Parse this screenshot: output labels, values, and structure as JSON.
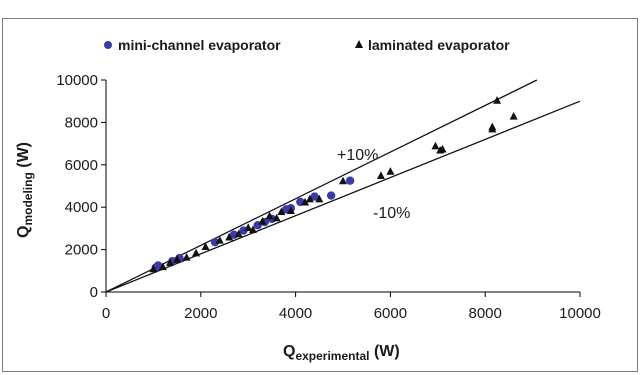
{
  "chart_data": {
    "type": "scatter",
    "title": "",
    "xlabel": "Q",
    "xlabel_sub": "experimental",
    "xlabel_unit": " (W)",
    "ylabel": "Q",
    "ylabel_sub": "modeling",
    "ylabel_unit": " (W)",
    "xlim": [
      0,
      10000
    ],
    "ylim": [
      0,
      10000
    ],
    "xticks": [
      0,
      2000,
      4000,
      6000,
      8000,
      10000
    ],
    "yticks": [
      0,
      2000,
      4000,
      6000,
      8000,
      10000
    ],
    "grid": false,
    "legend_position": "top",
    "series": [
      {
        "name": "mini-channel evaporator",
        "marker": "circle",
        "color": "#3a3aa8",
        "points": [
          [
            1050,
            1150
          ],
          [
            1100,
            1250
          ],
          [
            1400,
            1450
          ],
          [
            1550,
            1600
          ],
          [
            2300,
            2350
          ],
          [
            2700,
            2700
          ],
          [
            2900,
            2900
          ],
          [
            3200,
            3150
          ],
          [
            3350,
            3300
          ],
          [
            3500,
            3450
          ],
          [
            3800,
            3900
          ],
          [
            3900,
            3950
          ],
          [
            4100,
            4250
          ],
          [
            4400,
            4500
          ],
          [
            4750,
            4550
          ],
          [
            5150,
            5250
          ]
        ]
      },
      {
        "name": "laminated evaporator",
        "marker": "triangle",
        "color": "#111111",
        "points": [
          [
            1000,
            1100
          ],
          [
            1200,
            1200
          ],
          [
            1350,
            1400
          ],
          [
            1500,
            1550
          ],
          [
            1700,
            1650
          ],
          [
            1900,
            1850
          ],
          [
            2100,
            2150
          ],
          [
            2400,
            2450
          ],
          [
            2600,
            2600
          ],
          [
            2800,
            2750
          ],
          [
            3000,
            3050
          ],
          [
            3100,
            2950
          ],
          [
            3300,
            3350
          ],
          [
            3450,
            3600
          ],
          [
            3600,
            3500
          ],
          [
            3700,
            3800
          ],
          [
            3900,
            3850
          ],
          [
            4200,
            4250
          ],
          [
            4300,
            4400
          ],
          [
            4500,
            4400
          ],
          [
            5000,
            5250
          ],
          [
            5800,
            5500
          ],
          [
            6000,
            5700
          ],
          [
            6950,
            6900
          ],
          [
            7050,
            6700
          ],
          [
            7100,
            6750
          ],
          [
            8150,
            7800
          ],
          [
            8150,
            7700
          ],
          [
            8250,
            9050
          ],
          [
            8600,
            8300
          ]
        ]
      }
    ],
    "reference_lines": [
      {
        "label": "+10%",
        "slope": 1.1
      },
      {
        "label": "-10%",
        "slope": 0.9
      }
    ]
  }
}
